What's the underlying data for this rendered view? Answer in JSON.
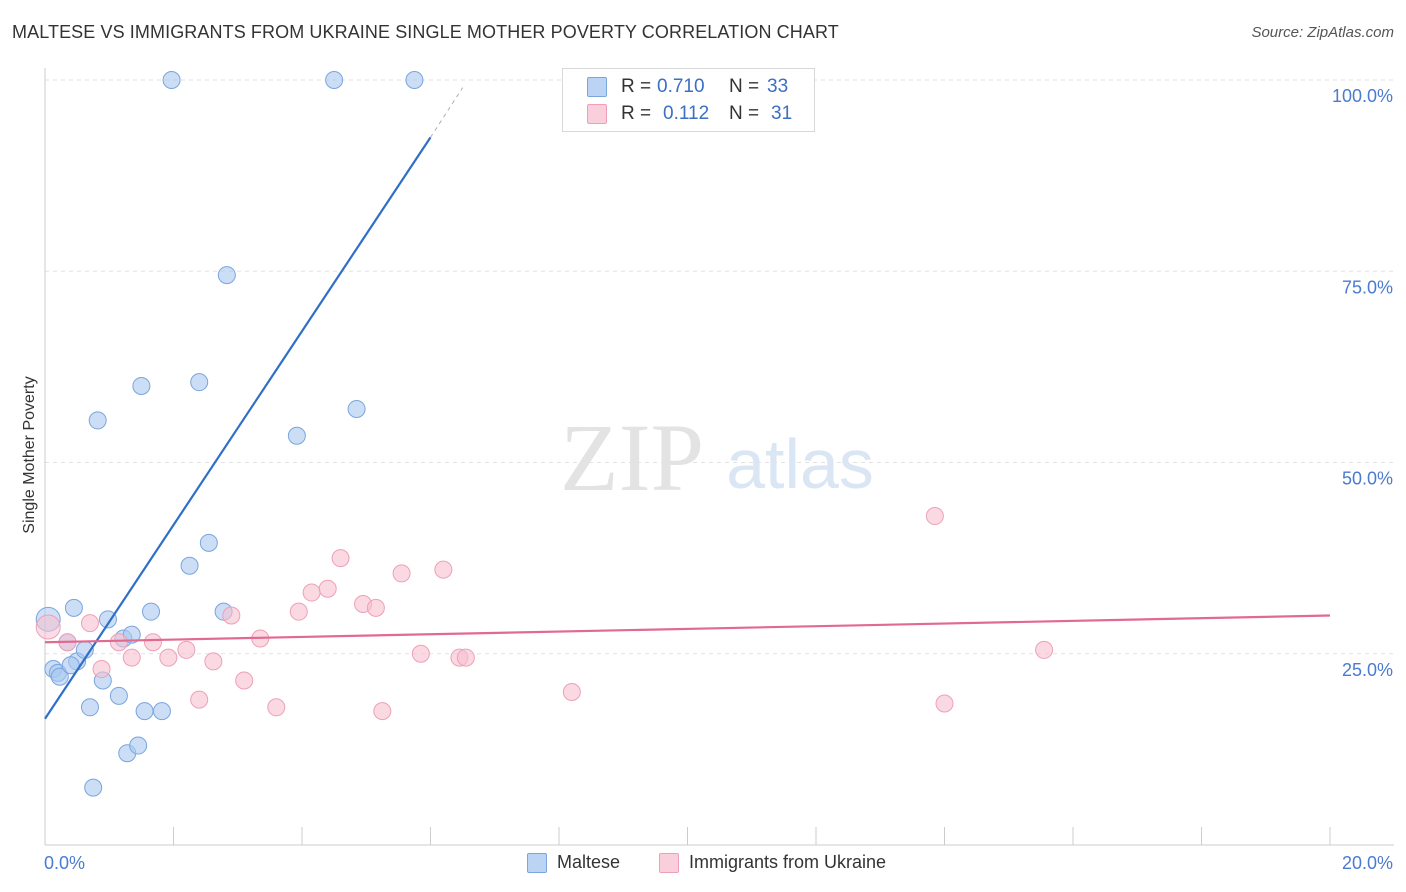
{
  "title": "MALTESE VS IMMIGRANTS FROM UKRAINE SINGLE MOTHER POVERTY CORRELATION CHART",
  "source": "Source: ZipAtlas.com",
  "watermark": {
    "zip": "ZIP",
    "atlas": "atlas"
  },
  "legend": {
    "rows": [
      {
        "r_label": "R =",
        "r_value": "0.710",
        "n_label": "N =",
        "n_value": "33"
      },
      {
        "r_label": "R =",
        "r_value": "0.112",
        "n_label": "N =",
        "n_value": "31"
      }
    ]
  },
  "chart_data": {
    "type": "scatter",
    "title": "MALTESE VS IMMIGRANTS FROM UKRAINE SINGLE MOTHER POVERTY CORRELATION CHART",
    "xlabel": "",
    "ylabel": "Single Mother Poverty",
    "xlim": [
      0,
      20
    ],
    "ylim": [
      0,
      100
    ],
    "x_tick_labels": [
      "0.0%",
      "20.0%"
    ],
    "y_tick_labels": [
      "100.0%",
      "75.0%",
      "50.0%",
      "25.0%"
    ],
    "y_tick_values": [
      100,
      75,
      50,
      25
    ],
    "grid": true,
    "legend_position": "top-center",
    "series": [
      {
        "name": "Maltese",
        "color": "#a9c8f0",
        "edge": "#7aa5dd",
        "line_color": "#2f6fc7",
        "trend": {
          "x": [
            0.0,
            6.0
          ],
          "y": [
            16.5,
            92.5
          ],
          "dash_x": [
            6.0,
            6.5
          ],
          "dash_y": [
            92.5,
            99.0
          ]
        },
        "points": [
          {
            "x": 0.05,
            "y": 29.5
          },
          {
            "x": 0.13,
            "y": 23.0
          },
          {
            "x": 0.2,
            "y": 22.5
          },
          {
            "x": 0.23,
            "y": 22.0
          },
          {
            "x": 0.35,
            "y": 26.5
          },
          {
            "x": 0.45,
            "y": 31.0
          },
          {
            "x": 0.5,
            "y": 24.0
          },
          {
            "x": 0.62,
            "y": 25.5
          },
          {
            "x": 0.7,
            "y": 18.0
          },
          {
            "x": 0.75,
            "y": 7.5
          },
          {
            "x": 0.82,
            "y": 55.5
          },
          {
            "x": 0.9,
            "y": 21.5
          },
          {
            "x": 0.98,
            "y": 29.5
          },
          {
            "x": 1.15,
            "y": 19.5
          },
          {
            "x": 1.22,
            "y": 27.0
          },
          {
            "x": 1.28,
            "y": 12.0
          },
          {
            "x": 1.35,
            "y": 27.5
          },
          {
            "x": 1.45,
            "y": 13.0
          },
          {
            "x": 1.5,
            "y": 60.0
          },
          {
            "x": 1.55,
            "y": 17.5
          },
          {
            "x": 1.65,
            "y": 30.5
          },
          {
            "x": 1.82,
            "y": 17.5
          },
          {
            "x": 1.97,
            "y": 100.0
          },
          {
            "x": 2.25,
            "y": 36.5
          },
          {
            "x": 2.4,
            "y": 60.5
          },
          {
            "x": 2.55,
            "y": 39.5
          },
          {
            "x": 2.78,
            "y": 30.5
          },
          {
            "x": 2.83,
            "y": 74.5
          },
          {
            "x": 3.92,
            "y": 53.5
          },
          {
            "x": 4.5,
            "y": 100.0
          },
          {
            "x": 4.85,
            "y": 57.0
          },
          {
            "x": 5.75,
            "y": 100.0
          },
          {
            "x": 0.4,
            "y": 23.5
          }
        ]
      },
      {
        "name": "Immigrants from Ukraine",
        "color": "#f7bfd0",
        "edge": "#eea0b8",
        "line_color": "#e16a91",
        "trend": {
          "x": [
            0.0,
            20.0
          ],
          "y": [
            26.5,
            30.0
          ]
        },
        "points": [
          {
            "x": 0.05,
            "y": 28.5
          },
          {
            "x": 0.35,
            "y": 26.5
          },
          {
            "x": 0.7,
            "y": 29.0
          },
          {
            "x": 0.88,
            "y": 23.0
          },
          {
            "x": 1.15,
            "y": 26.5
          },
          {
            "x": 1.35,
            "y": 24.5
          },
          {
            "x": 1.68,
            "y": 26.5
          },
          {
            "x": 1.92,
            "y": 24.5
          },
          {
            "x": 2.2,
            "y": 25.5
          },
          {
            "x": 2.4,
            "y": 19.0
          },
          {
            "x": 2.62,
            "y": 24.0
          },
          {
            "x": 2.9,
            "y": 30.0
          },
          {
            "x": 3.1,
            "y": 21.5
          },
          {
            "x": 3.35,
            "y": 27.0
          },
          {
            "x": 3.6,
            "y": 18.0
          },
          {
            "x": 3.95,
            "y": 30.5
          },
          {
            "x": 4.15,
            "y": 33.0
          },
          {
            "x": 4.4,
            "y": 33.5
          },
          {
            "x": 4.6,
            "y": 37.5
          },
          {
            "x": 4.95,
            "y": 31.5
          },
          {
            "x": 5.15,
            "y": 31.0
          },
          {
            "x": 5.25,
            "y": 17.5
          },
          {
            "x": 5.55,
            "y": 35.5
          },
          {
            "x": 5.85,
            "y": 25.0
          },
          {
            "x": 6.2,
            "y": 36.0
          },
          {
            "x": 6.45,
            "y": 24.5
          },
          {
            "x": 6.55,
            "y": 24.5
          },
          {
            "x": 8.2,
            "y": 20.0
          },
          {
            "x": 13.85,
            "y": 43.0
          },
          {
            "x": 14.0,
            "y": 18.5
          },
          {
            "x": 15.55,
            "y": 25.5
          }
        ]
      }
    ]
  }
}
